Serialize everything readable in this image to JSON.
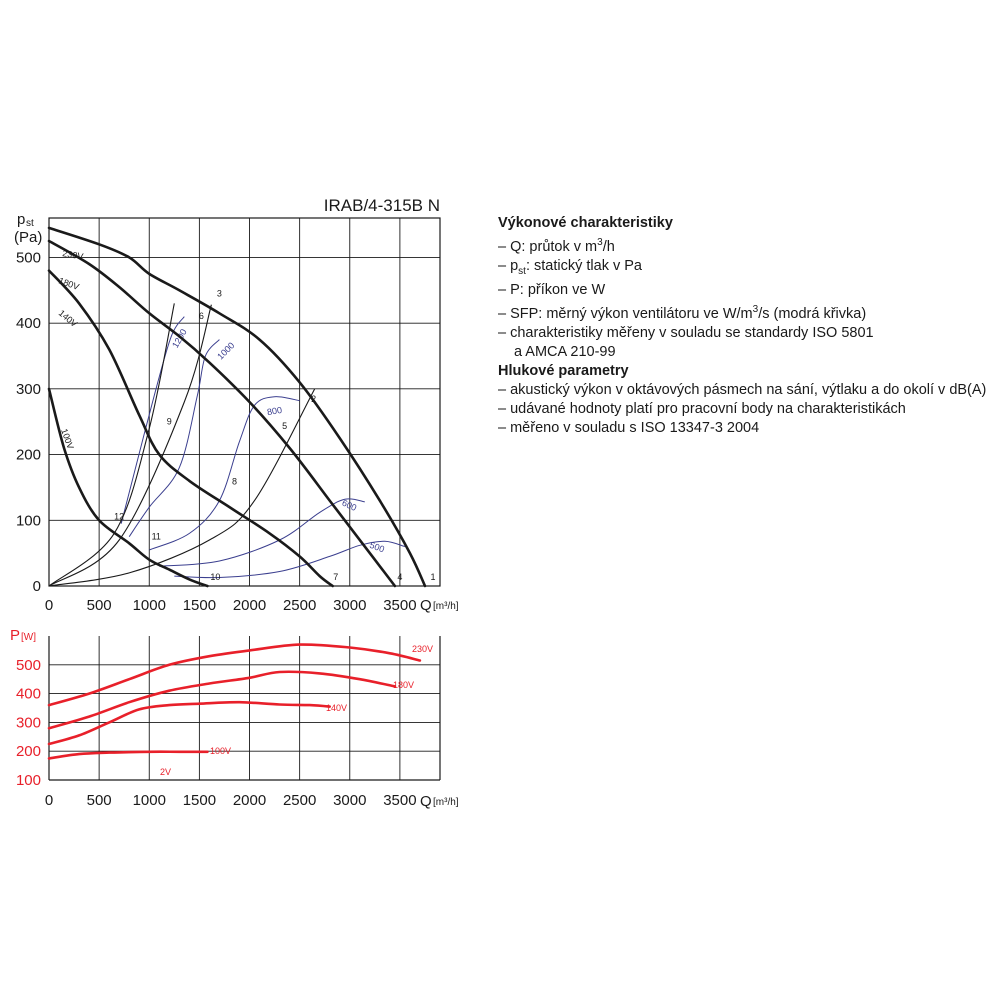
{
  "chart_data": [
    {
      "type": "line",
      "title": "IRAB/4-315B N",
      "ylabel": "p",
      "ylabel_sub": "st",
      "ylabel_unit": "(Pa)",
      "xlabel": "Q",
      "xlabel_unit": "[m³/h]",
      "xlim": [
        0,
        3900
      ],
      "ylim": [
        0,
        560
      ],
      "x_ticks": [
        0,
        500,
        1000,
        1500,
        2000,
        2500,
        3000,
        3500
      ],
      "y_ticks": [
        0,
        100,
        200,
        300,
        400,
        500
      ],
      "grid": true,
      "series": [
        {
          "name": "230V",
          "x": [
            0,
            500,
            800,
            1000,
            1300,
            1700,
            2100,
            2500,
            2900,
            3300,
            3600,
            3750
          ],
          "y": [
            545,
            520,
            500,
            475,
            450,
            415,
            375,
            310,
            225,
            130,
            50,
            0
          ]
        },
        {
          "name": "180V",
          "x": [
            0,
            400,
            700,
            1000,
            1300,
            1600,
            2000,
            2400,
            2800,
            3150,
            3450
          ],
          "y": [
            525,
            490,
            455,
            415,
            380,
            340,
            280,
            210,
            130,
            60,
            0
          ]
        },
        {
          "name": "140V",
          "x": [
            0,
            300,
            600,
            900,
            1100,
            1400,
            1800,
            2200,
            2500,
            2700,
            2830
          ],
          "y": [
            480,
            430,
            360,
            260,
            200,
            160,
            120,
            80,
            45,
            15,
            0
          ]
        },
        {
          "name": "100V",
          "x": [
            0,
            150,
            300,
            500,
            800,
            1000,
            1200,
            1400,
            1580
          ],
          "y": [
            300,
            210,
            150,
            100,
            65,
            40,
            25,
            10,
            0
          ]
        }
      ],
      "system_curves": [
        {
          "x": [
            0,
            800,
            1600,
            2050,
            2650
          ],
          "y": [
            0,
            20,
            70,
            130,
            300
          ]
        },
        {
          "x": [
            0,
            700,
            1350,
            1620
          ],
          "y": [
            0,
            70,
            280,
            428
          ]
        },
        {
          "x": [
            0,
            650,
            1000,
            1250
          ],
          "y": [
            0,
            80,
            240,
            430
          ]
        }
      ],
      "sfp_curves": [
        {
          "label": "1200",
          "x": [
            720,
            830,
            1050,
            1220,
            1350
          ],
          "y": [
            95,
            160,
            290,
            380,
            410
          ]
        },
        {
          "label": "1000",
          "x": [
            800,
            1000,
            1300,
            1480,
            1560,
            1700
          ],
          "y": [
            75,
            120,
            180,
            290,
            350,
            375
          ]
        },
        {
          "label": "800",
          "x": [
            1000,
            1400,
            1700,
            1900,
            2050,
            2250,
            2500
          ],
          "y": [
            55,
            80,
            130,
            220,
            275,
            288,
            282
          ]
        },
        {
          "label": "600",
          "x": [
            1100,
            1700,
            2300,
            2700,
            2950,
            3150
          ],
          "y": [
            30,
            38,
            70,
            112,
            132,
            128
          ]
        },
        {
          "label": "500",
          "x": [
            1250,
            1700,
            2300,
            2800,
            3100,
            3350,
            3550
          ],
          "y": [
            15,
            13,
            22,
            45,
            62,
            68,
            60
          ]
        }
      ],
      "operating_points": [
        {
          "label": "1",
          "x": 3730,
          "y": 0
        },
        {
          "label": "2",
          "x": 2560,
          "y": 280
        },
        {
          "label": "3",
          "x": 1650,
          "y": 428
        },
        {
          "label": "4",
          "x": 3440,
          "y": 0
        },
        {
          "label": "5",
          "x": 2350,
          "y": 230
        },
        {
          "label": "6",
          "x": 1520,
          "y": 385
        },
        {
          "label": "7",
          "x": 2800,
          "y": 0
        },
        {
          "label": "8",
          "x": 1850,
          "y": 145
        },
        {
          "label": "9",
          "x": 1200,
          "y": 240
        },
        {
          "label": "10",
          "x": 1600,
          "y": 0
        },
        {
          "label": "11",
          "x": 1050,
          "y": 65
        },
        {
          "label": "12",
          "x": 700,
          "y": 95
        }
      ]
    },
    {
      "type": "line",
      "ylabel": "P",
      "ylabel_unit": "[W]",
      "xlabel": "Q",
      "xlabel_unit": "[m³/h]",
      "xlim": [
        0,
        3900
      ],
      "ylim": [
        100,
        600
      ],
      "x_ticks": [
        0,
        500,
        1000,
        1500,
        2000,
        2500,
        3000,
        3500
      ],
      "y_ticks": [
        100,
        200,
        300,
        400,
        500
      ],
      "grid": true,
      "series": [
        {
          "name": "230V",
          "x": [
            0,
            400,
            800,
            1200,
            1600,
            2000,
            2500,
            3000,
            3400,
            3700
          ],
          "y": [
            360,
            400,
            450,
            500,
            530,
            550,
            570,
            560,
            540,
            515
          ]
        },
        {
          "name": "180V",
          "x": [
            0,
            400,
            800,
            1200,
            1600,
            2000,
            2300,
            2700,
            3100,
            3450
          ],
          "y": [
            280,
            320,
            370,
            410,
            435,
            455,
            475,
            470,
            450,
            425
          ]
        },
        {
          "name": "140V",
          "x": [
            0,
            300,
            600,
            900,
            1200,
            1500,
            1900,
            2300,
            2600,
            2800
          ],
          "y": [
            225,
            255,
            300,
            345,
            360,
            365,
            370,
            362,
            360,
            355
          ]
        },
        {
          "name": "100V",
          "x": [
            0,
            300,
            600,
            1000,
            1300,
            1580
          ],
          "y": [
            175,
            190,
            195,
            198,
            198,
            198
          ]
        }
      ],
      "annotation": "2V"
    }
  ],
  "legend": {
    "perf_heading": "Výkonové charakteristiky",
    "perf_items": [
      {
        "pre": "– Q: průtok v m",
        "sup": "3",
        "post": "/h"
      },
      {
        "pre": "– p",
        "sub": "st",
        "post": ": statický tlak v Pa"
      },
      {
        "pre": "– P: příkon ve W"
      },
      {
        "pre": "– SFP: měrný výkon ventilátoru ve W/m",
        "sup": "3",
        "post": "/s (modrá křivka)"
      },
      {
        "pre": "– charakteristiky měřeny v souladu se standardy ISO 5801"
      },
      {
        "pre": "a AMCA 210-99",
        "cont": true
      }
    ],
    "noise_heading": "Hlukové parametry",
    "noise_items": [
      "– akustický výkon v oktávových pásmech na sání, výtlaku a do okolí v dB(A)",
      "– udávané hodnoty platí pro pracovní body na charakteristikách",
      "– měřeno v souladu s ISO 13347-3 2004"
    ]
  },
  "colors": {
    "fan_curve": "#1a1a1a",
    "sfp_curve": "#3b3f8f",
    "power_curve": "#e8202a"
  }
}
